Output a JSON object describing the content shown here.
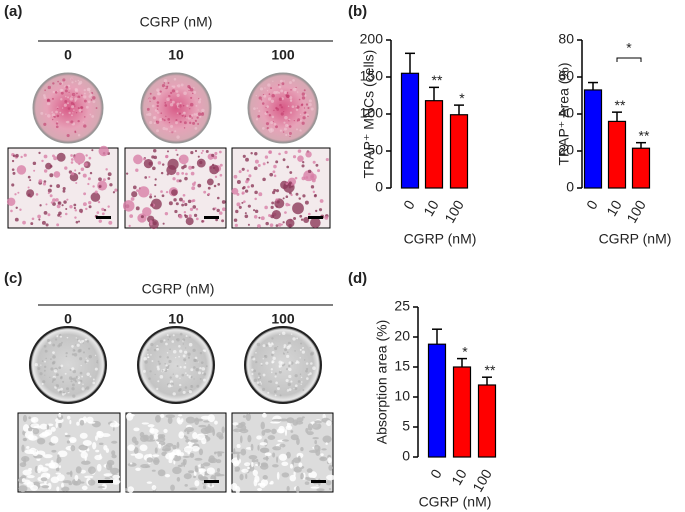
{
  "chart_data": [
    {
      "type": "bar",
      "ylabel": "TRAP⁺ MNCs (cells)",
      "xlabel": "CGRP (nM)",
      "categories": [
        "0",
        "10",
        "100"
      ],
      "values": [
        155,
        118,
        99
      ],
      "errors": [
        27,
        18,
        13
      ],
      "colors": [
        "#0000ff",
        "#ff0000",
        "#ff0000"
      ],
      "significance": [
        null,
        "**",
        "*"
      ],
      "ylim": [
        0,
        200
      ],
      "yticks": [
        0,
        50,
        100,
        150,
        200
      ]
    },
    {
      "type": "bar",
      "ylabel": "TRAP⁺ Area (%)",
      "xlabel": "CGRP (nM)",
      "categories": [
        "0",
        "10",
        "100"
      ],
      "values": [
        53,
        36,
        21.5
      ],
      "errors": [
        4,
        5,
        3
      ],
      "colors": [
        "#0000ff",
        "#ff0000",
        "#ff0000"
      ],
      "significance": [
        null,
        "**",
        "**"
      ],
      "bracket": {
        "from": 1,
        "to": 2,
        "text": "*"
      },
      "ylim": [
        0,
        80
      ],
      "yticks": [
        0,
        20,
        40,
        60,
        80
      ]
    },
    {
      "type": "bar",
      "ylabel": "Absorption area (%)",
      "xlabel": "CGRP (nM)",
      "categories": [
        "0",
        "10",
        "100"
      ],
      "values": [
        18.8,
        15,
        12
      ],
      "errors": [
        2.5,
        1.4,
        1.3
      ],
      "colors": [
        "#0000ff",
        "#ff0000",
        "#ff0000"
      ],
      "significance": [
        null,
        "*",
        "**"
      ],
      "ylim": [
        0,
        25
      ],
      "yticks": [
        0,
        5,
        10,
        15,
        20,
        25
      ]
    }
  ],
  "panels": {
    "a": {
      "label": "(a)",
      "title": "CGRP (nM)",
      "doses": [
        "0",
        "10",
        "100"
      ]
    },
    "b": {
      "label": "(b)"
    },
    "c": {
      "label": "(c)",
      "title": "CGRP (nM)",
      "doses": [
        "0",
        "10",
        "100"
      ]
    },
    "d": {
      "label": "(d)"
    }
  }
}
